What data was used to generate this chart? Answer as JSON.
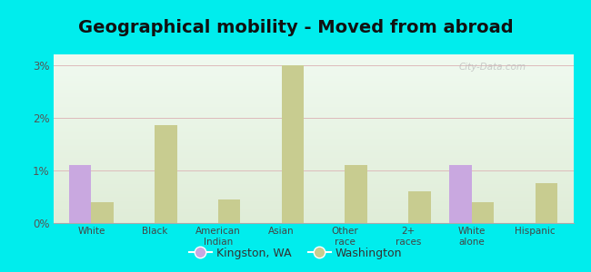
{
  "title": "Geographical mobility - Moved from abroad",
  "categories": [
    "White",
    "Black",
    "American\nIndian",
    "Asian",
    "Other\nrace",
    "2+\nraces",
    "White\nalone",
    "Hispanic"
  ],
  "kingston_values": [
    1.1,
    0.0,
    0.0,
    0.0,
    0.0,
    0.0,
    1.1,
    0.0
  ],
  "washington_values": [
    0.4,
    1.85,
    0.45,
    3.0,
    1.1,
    0.6,
    0.4,
    0.75
  ],
  "kingston_color": "#c9a8e0",
  "washington_color": "#c8cc90",
  "background_color": "#00eded",
  "plot_bg_color_top": "#e0edd8",
  "plot_bg_color_bottom": "#f0faf0",
  "ylim": [
    0,
    3.2
  ],
  "yticks": [
    0,
    1,
    2,
    3
  ],
  "ytick_labels": [
    "0%",
    "1%",
    "2%",
    "3%"
  ],
  "title_fontsize": 14,
  "legend_labels": [
    "Kingston, WA",
    "Washington"
  ],
  "bar_width": 0.35,
  "watermark": "City-Data.com"
}
